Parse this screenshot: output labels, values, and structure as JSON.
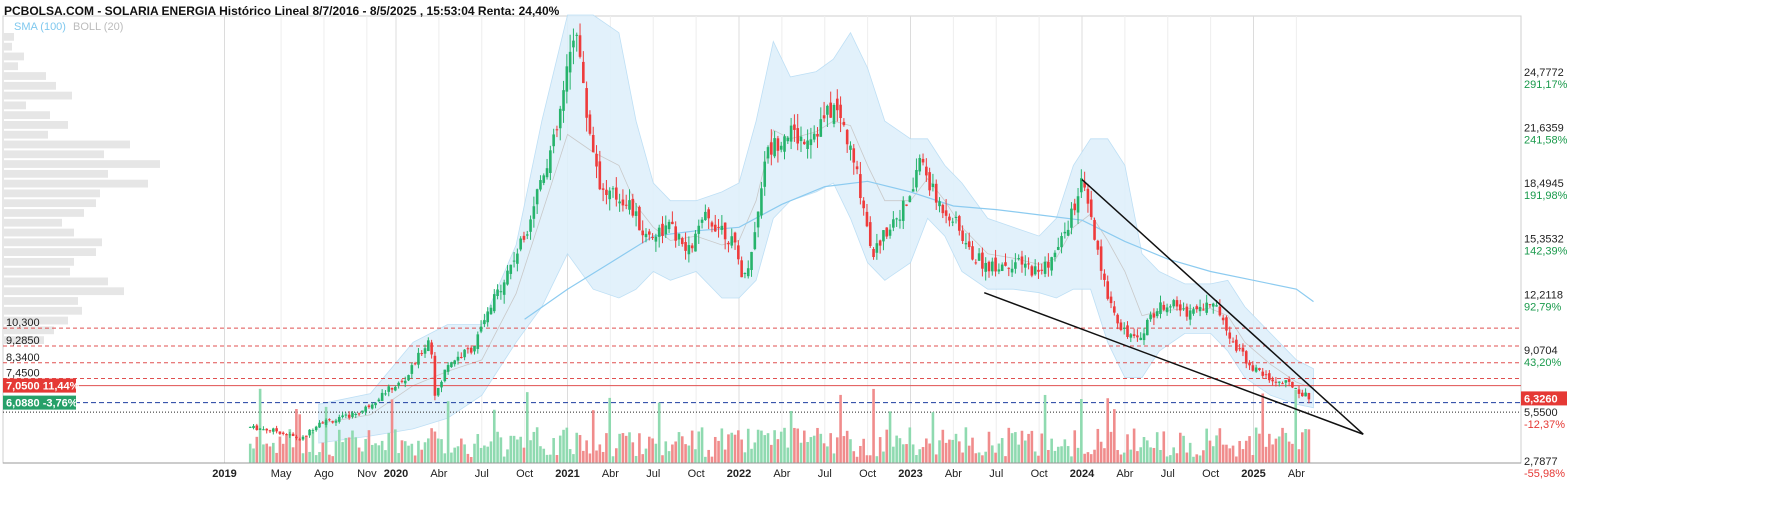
{
  "header": {
    "title": "PCBOLSA.COM - SOLARIA ENERGIA Histórico Lineal 8/7/2016 - 8/5/2025 , 15:53:04 Renta: 24,40%",
    "legend_sma": "SMA (100)",
    "legend_boll": "BOLL (20)"
  },
  "colors": {
    "up": "#26b36b",
    "down": "#ee3b3b",
    "volume_up": "#8fdab0",
    "volume_down": "#f08c8c",
    "bollinger_fill": "#dff0fb",
    "sma": "#8ccbf0",
    "pct_positive": "#1a9a4c",
    "pct_negative": "#e53935",
    "price_badge": "#e53935",
    "support_badge": "#26a069",
    "resistance_line": "#e05050",
    "support_line": "#1f3fa0",
    "volume_profile": "#e6e6e6"
  },
  "chart_data": {
    "type": "candlestick",
    "ylim": [
      0.9,
      28.0
    ],
    "y_axis_ticks": [
      {
        "price": "24,7772",
        "pct": "291,17%",
        "value": 24.7772,
        "positive": true
      },
      {
        "price": "21,6359",
        "pct": "241,58%",
        "value": 21.6359,
        "positive": true
      },
      {
        "price": "18,4945",
        "pct": "191,98%",
        "value": 18.4945,
        "positive": true
      },
      {
        "price": "15,3532",
        "pct": "142,39%",
        "value": 15.3532,
        "positive": true
      },
      {
        "price": "12,2118",
        "pct": "92,79%",
        "value": 12.2118,
        "positive": true
      },
      {
        "price": "9,0704",
        "pct": "43,20%",
        "value": 9.0704,
        "positive": true
      },
      {
        "price": "5,5500",
        "pct": "-12,37%",
        "value": 5.55,
        "positive": false
      },
      {
        "price": "2,7877",
        "pct": "-55,98%",
        "value": 2.7877,
        "positive": false
      }
    ],
    "x_axis_labels": [
      {
        "label": "2019",
        "bold": true,
        "t": 2019.0
      },
      {
        "label": "May",
        "bold": false,
        "t": 2019.33
      },
      {
        "label": "Ago",
        "bold": false,
        "t": 2019.58
      },
      {
        "label": "Nov",
        "bold": false,
        "t": 2019.83
      },
      {
        "label": "2020",
        "bold": true,
        "t": 2020.0
      },
      {
        "label": "Abr",
        "bold": false,
        "t": 2020.25
      },
      {
        "label": "Jul",
        "bold": false,
        "t": 2020.5
      },
      {
        "label": "Oct",
        "bold": false,
        "t": 2020.75
      },
      {
        "label": "2021",
        "bold": true,
        "t": 2021.0
      },
      {
        "label": "Abr",
        "bold": false,
        "t": 2021.25
      },
      {
        "label": "Jul",
        "bold": false,
        "t": 2021.5
      },
      {
        "label": "Oct",
        "bold": false,
        "t": 2021.75
      },
      {
        "label": "2022",
        "bold": true,
        "t": 2022.0
      },
      {
        "label": "Abr",
        "bold": false,
        "t": 2022.25
      },
      {
        "label": "Jul",
        "bold": false,
        "t": 2022.5
      },
      {
        "label": "Oct",
        "bold": false,
        "t": 2022.75
      },
      {
        "label": "2023",
        "bold": true,
        "t": 2023.0
      },
      {
        "label": "Abr",
        "bold": false,
        "t": 2023.25
      },
      {
        "label": "Jul",
        "bold": false,
        "t": 2023.5
      },
      {
        "label": "Oct",
        "bold": false,
        "t": 2023.75
      },
      {
        "label": "2024",
        "bold": true,
        "t": 2024.0
      },
      {
        "label": "Abr",
        "bold": false,
        "t": 2024.25
      },
      {
        "label": "Jul",
        "bold": false,
        "t": 2024.5
      },
      {
        "label": "Oct",
        "bold": false,
        "t": 2024.75
      },
      {
        "label": "2025",
        "bold": true,
        "t": 2025.0
      },
      {
        "label": "Abr",
        "bold": false,
        "t": 2025.25
      }
    ],
    "horizontal_levels": [
      {
        "label": "10,300",
        "value": 10.3,
        "style": "resistance"
      },
      {
        "label": "9,2850",
        "value": 9.285,
        "style": "resistance"
      },
      {
        "label": "8,3400",
        "value": 8.34,
        "style": "resistance"
      },
      {
        "label": "7,4500",
        "value": 7.45,
        "style": "resistance"
      },
      {
        "label": "7,0500",
        "pct": "11,44%",
        "value": 7.05,
        "style": "resistance-strong"
      },
      {
        "label": "6,0880",
        "pct": "-3,76%",
        "value": 6.088,
        "style": "support"
      },
      {
        "label": "5,5500",
        "value": 5.55,
        "style": "dotted"
      }
    ],
    "current_price": {
      "label": "6,3260",
      "value": 6.326
    },
    "trendlines": [
      {
        "from": [
          2024.0,
          18.7
        ],
        "to": [
          2025.64,
          4.3
        ]
      },
      {
        "from": [
          2023.43,
          12.3
        ],
        "to": [
          2025.64,
          4.3
        ]
      }
    ],
    "price_path": [
      [
        2019.15,
        4.7
      ],
      [
        2019.3,
        4.5
      ],
      [
        2019.45,
        4.0
      ],
      [
        2019.55,
        5.0
      ],
      [
        2019.65,
        5.1
      ],
      [
        2019.8,
        5.6
      ],
      [
        2019.95,
        6.8
      ],
      [
        2020.05,
        7.3
      ],
      [
        2020.15,
        9.0
      ],
      [
        2020.2,
        9.8
      ],
      [
        2020.23,
        6.3
      ],
      [
        2020.3,
        8.3
      ],
      [
        2020.45,
        9.2
      ],
      [
        2020.6,
        12.5
      ],
      [
        2020.75,
        15.5
      ],
      [
        2020.85,
        19.0
      ],
      [
        2020.93,
        21.0
      ],
      [
        2021.0,
        24.8
      ],
      [
        2021.05,
        27.8
      ],
      [
        2021.1,
        23.0
      ],
      [
        2021.2,
        18.0
      ],
      [
        2021.35,
        17.5
      ],
      [
        2021.45,
        15.5
      ],
      [
        2021.6,
        16.0
      ],
      [
        2021.7,
        14.5
      ],
      [
        2021.8,
        16.5
      ],
      [
        2021.9,
        16.0
      ],
      [
        2021.97,
        15.0
      ],
      [
        2022.03,
        13.0
      ],
      [
        2022.1,
        16.0
      ],
      [
        2022.15,
        20.0
      ],
      [
        2022.28,
        21.5
      ],
      [
        2022.35,
        21.0
      ],
      [
        2022.45,
        21.5
      ],
      [
        2022.55,
        22.8
      ],
      [
        2022.6,
        22.0
      ],
      [
        2022.7,
        18.5
      ],
      [
        2022.78,
        14.5
      ],
      [
        2022.9,
        16.5
      ],
      [
        2023.0,
        17.5
      ],
      [
        2023.05,
        20.0
      ],
      [
        2023.15,
        17.5
      ],
      [
        2023.25,
        16.5
      ],
      [
        2023.35,
        14.5
      ],
      [
        2023.45,
        13.8
      ],
      [
        2023.6,
        14.0
      ],
      [
        2023.75,
        13.5
      ],
      [
        2023.85,
        14.5
      ],
      [
        2023.95,
        17.0
      ],
      [
        2024.0,
        18.5
      ],
      [
        2024.05,
        16.5
      ],
      [
        2024.12,
        13.0
      ],
      [
        2024.22,
        10.5
      ],
      [
        2024.32,
        9.5
      ],
      [
        2024.4,
        11.0
      ],
      [
        2024.5,
        11.8
      ],
      [
        2024.6,
        11.2
      ],
      [
        2024.75,
        11.7
      ],
      [
        2024.82,
        11.0
      ],
      [
        2024.88,
        9.5
      ],
      [
        2025.0,
        8.0
      ],
      [
        2025.12,
        7.3
      ],
      [
        2025.22,
        7.1
      ],
      [
        2025.3,
        6.5
      ],
      [
        2025.35,
        6.3
      ]
    ],
    "bollinger_upper": [
      [
        2019.55,
        6.0
      ],
      [
        2019.85,
        6.6
      ],
      [
        2020.1,
        9.5
      ],
      [
        2020.3,
        10.5
      ],
      [
        2020.5,
        10.5
      ],
      [
        2020.7,
        15.0
      ],
      [
        2020.85,
        22.0
      ],
      [
        2021.0,
        28.0
      ],
      [
        2021.15,
        28.0
      ],
      [
        2021.3,
        27.0
      ],
      [
        2021.4,
        22.0
      ],
      [
        2021.5,
        18.5
      ],
      [
        2021.6,
        17.5
      ],
      [
        2021.75,
        17.5
      ],
      [
        2021.9,
        18.0
      ],
      [
        2022.0,
        18.5
      ],
      [
        2022.1,
        22.0
      ],
      [
        2022.2,
        26.5
      ],
      [
        2022.3,
        24.5
      ],
      [
        2022.45,
        24.8
      ],
      [
        2022.55,
        25.5
      ],
      [
        2022.65,
        27.0
      ],
      [
        2022.75,
        25.0
      ],
      [
        2022.85,
        22.0
      ],
      [
        2023.0,
        21.0
      ],
      [
        2023.1,
        21.0
      ],
      [
        2023.2,
        19.5
      ],
      [
        2023.3,
        18.5
      ],
      [
        2023.45,
        16.5
      ],
      [
        2023.6,
        16.0
      ],
      [
        2023.75,
        15.5
      ],
      [
        2023.85,
        16.5
      ],
      [
        2023.95,
        19.5
      ],
      [
        2024.05,
        21.0
      ],
      [
        2024.15,
        21.0
      ],
      [
        2024.25,
        19.5
      ],
      [
        2024.35,
        14.5
      ],
      [
        2024.45,
        13.5
      ],
      [
        2024.6,
        12.8
      ],
      [
        2024.75,
        12.8
      ],
      [
        2024.85,
        13.0
      ],
      [
        2024.95,
        11.5
      ],
      [
        2025.1,
        10.0
      ],
      [
        2025.25,
        8.5
      ],
      [
        2025.35,
        8.0
      ]
    ],
    "bollinger_lower": [
      [
        2019.55,
        3.8
      ],
      [
        2019.85,
        4.2
      ],
      [
        2020.1,
        4.6
      ],
      [
        2020.3,
        5.2
      ],
      [
        2020.5,
        6.5
      ],
      [
        2020.7,
        9.5
      ],
      [
        2020.85,
        11.5
      ],
      [
        2021.0,
        14.5
      ],
      [
        2021.15,
        12.5
      ],
      [
        2021.3,
        12.0
      ],
      [
        2021.4,
        12.5
      ],
      [
        2021.5,
        13.5
      ],
      [
        2021.6,
        13.0
      ],
      [
        2021.75,
        13.5
      ],
      [
        2021.9,
        12.0
      ],
      [
        2022.0,
        12.0
      ],
      [
        2022.1,
        13.0
      ],
      [
        2022.2,
        16.5
      ],
      [
        2022.3,
        17.5
      ],
      [
        2022.45,
        18.0
      ],
      [
        2022.55,
        18.5
      ],
      [
        2022.65,
        16.5
      ],
      [
        2022.75,
        14.0
      ],
      [
        2022.85,
        13.0
      ],
      [
        2023.0,
        14.0
      ],
      [
        2023.1,
        16.5
      ],
      [
        2023.2,
        15.5
      ],
      [
        2023.3,
        13.5
      ],
      [
        2023.45,
        12.5
      ],
      [
        2023.6,
        12.5
      ],
      [
        2023.75,
        12.3
      ],
      [
        2023.85,
        12.0
      ],
      [
        2023.95,
        12.5
      ],
      [
        2024.05,
        12.5
      ],
      [
        2024.15,
        9.5
      ],
      [
        2024.25,
        7.5
      ],
      [
        2024.35,
        7.5
      ],
      [
        2024.45,
        9.0
      ],
      [
        2024.6,
        10.0
      ],
      [
        2024.75,
        10.0
      ],
      [
        2024.85,
        9.0
      ],
      [
        2024.95,
        7.5
      ],
      [
        2025.1,
        6.5
      ],
      [
        2025.25,
        6.0
      ],
      [
        2025.35,
        5.8
      ]
    ],
    "sma100": [
      [
        2020.75,
        10.8
      ],
      [
        2021.0,
        12.5
      ],
      [
        2021.25,
        14.0
      ],
      [
        2021.5,
        15.5
      ],
      [
        2021.75,
        15.8
      ],
      [
        2022.0,
        16.0
      ],
      [
        2022.25,
        17.3
      ],
      [
        2022.5,
        18.3
      ],
      [
        2022.75,
        18.6
      ],
      [
        2023.0,
        18.0
      ],
      [
        2023.25,
        17.2
      ],
      [
        2023.5,
        17.0
      ],
      [
        2023.75,
        16.7
      ],
      [
        2024.0,
        16.4
      ],
      [
        2024.25,
        15.2
      ],
      [
        2024.5,
        14.2
      ],
      [
        2024.75,
        13.5
      ],
      [
        2025.0,
        13.0
      ],
      [
        2025.25,
        12.5
      ],
      [
        2025.35,
        11.8
      ]
    ],
    "volume_profile": [
      0.05,
      0.04,
      0.1,
      0.07,
      0.21,
      0.26,
      0.34,
      0.11,
      0.23,
      0.32,
      0.22,
      0.63,
      0.5,
      0.78,
      0.52,
      0.72,
      0.48,
      0.46,
      0.4,
      0.29,
      0.35,
      0.49,
      0.46,
      0.35,
      0.33,
      0.52,
      0.6,
      0.37,
      0.39,
      0.32,
      0.25,
      0.2
    ]
  }
}
